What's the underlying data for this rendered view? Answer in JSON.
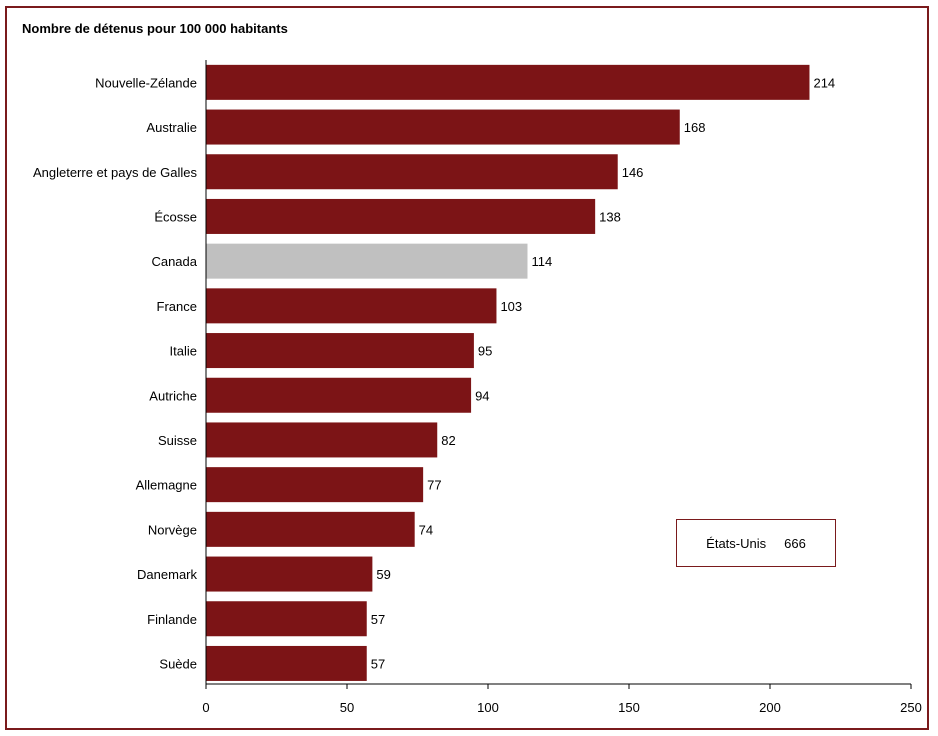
{
  "chart_data": {
    "type": "bar",
    "orientation": "horizontal",
    "title": "Nombre de détenus pour 100 000 habitants",
    "categories": [
      "Nouvelle-Zélande",
      "Australie",
      "Angleterre et pays de Galles",
      "Écosse",
      "Canada",
      "France",
      "Italie",
      "Autriche",
      "Suisse",
      "Allemagne",
      "Norvège",
      "Danemark",
      "Finlande",
      "Suède"
    ],
    "values": [
      214,
      168,
      146,
      138,
      114,
      103,
      95,
      94,
      82,
      77,
      74,
      59,
      57,
      57
    ],
    "highlight_category": "Canada",
    "xlim": [
      0,
      250
    ],
    "xticks": [
      0,
      50,
      100,
      150,
      200,
      250
    ],
    "grid": false,
    "colors": {
      "bar": "#7c1416",
      "highlight": "#c0c0c0",
      "axis": "#000000",
      "frame": "#7a1a1c"
    },
    "annotation": {
      "label": "États-Unis",
      "value": "666"
    }
  }
}
